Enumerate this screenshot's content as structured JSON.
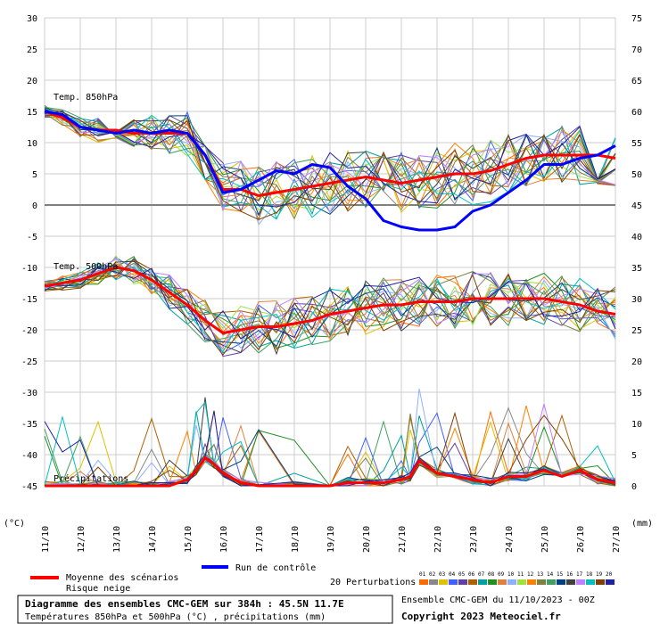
{
  "chart_data": {
    "type": "line",
    "title": "Diagramme des ensembles CMC-GEM sur 384h : 45.5N 11.7E",
    "subtitle": "Températures 850hPa et 500hPa (°C) , précipitations (mm)",
    "source": "Ensemble CMC-GEM du 11/10/2023 - 00Z",
    "copyright": "Copyright 2023 Meteociel.fr",
    "left_unit": "(°C)",
    "right_unit": "(mm)",
    "ylim": [
      -45,
      30
    ],
    "y2lim": [
      0,
      75
    ],
    "yticks": [
      "30",
      "25",
      "20",
      "15",
      "10",
      "5",
      "0",
      "-5",
      "-10",
      "-15",
      "-20",
      "-25",
      "-30",
      "-35",
      "-40",
      "-45"
    ],
    "y2ticks": [
      "75",
      "70",
      "65",
      "60",
      "55",
      "50",
      "45",
      "40",
      "35",
      "30",
      "25",
      "20",
      "15",
      "10",
      "5",
      "0"
    ],
    "x_categories": [
      "11/10",
      "12/10",
      "13/10",
      "14/10",
      "15/10",
      "16/10",
      "17/10",
      "18/10",
      "19/10",
      "20/10",
      "21/10",
      "22/10",
      "23/10",
      "24/10",
      "25/10",
      "26/10",
      "27/10"
    ],
    "panel_labels": {
      "t850": "Temp. 850hPa",
      "t500": "Temp. 500hPa",
      "precip": "Précipitations"
    },
    "series": [
      {
        "name": "Moyenne des scénarios",
        "key": "mean_t850",
        "color": "#ff0000",
        "x": [
          0,
          0.5,
          1,
          1.5,
          2,
          2.5,
          3,
          3.5,
          4,
          4.5,
          5,
          5.5,
          6,
          6.5,
          7,
          7.5,
          8,
          8.5,
          9,
          9.5,
          10,
          10.5,
          11,
          11.5,
          12,
          12.5,
          13,
          13.5,
          14,
          14.5,
          15,
          15.5,
          16
        ],
        "values": [
          15,
          14,
          12.5,
          12,
          12,
          11.5,
          11.5,
          11.5,
          11.5,
          8,
          2.5,
          2.5,
          1.5,
          2,
          2.5,
          3,
          3.5,
          4,
          4.5,
          4,
          3.5,
          4,
          4.5,
          5,
          5,
          5.5,
          6.5,
          7.5,
          8,
          8,
          8,
          8,
          7.5
        ]
      },
      {
        "name": "Run de contrôle",
        "key": "control_t850",
        "color": "#0000ff",
        "x": [
          0,
          0.5,
          1,
          1.5,
          2,
          2.5,
          3,
          3.5,
          4,
          4.5,
          5,
          5.5,
          6,
          6.5,
          7,
          7.5,
          8,
          8.5,
          9,
          9.5,
          10,
          10.5,
          11,
          11.5,
          12,
          12.5,
          13,
          13.5,
          14,
          14.5,
          15,
          15.5,
          16
        ],
        "values": [
          15,
          14.5,
          12.5,
          12,
          11.5,
          12,
          11.5,
          12,
          11.5,
          8,
          2,
          2.5,
          4,
          5.5,
          5,
          6.5,
          6,
          3,
          1,
          -2.5,
          -3.5,
          -4,
          -4,
          -3.5,
          -1,
          0,
          2,
          4,
          6.5,
          6.5,
          7.5,
          8,
          9.5
        ]
      },
      {
        "name": "Moyenne des scénarios",
        "key": "mean_t500",
        "color": "#ff0000",
        "x": [
          0,
          0.5,
          1,
          1.5,
          2,
          2.5,
          3,
          3.5,
          4,
          4.5,
          5,
          5.5,
          6,
          6.5,
          7,
          7.5,
          8,
          8.5,
          9,
          9.5,
          10,
          10.5,
          11,
          11.5,
          12,
          12.5,
          13,
          13.5,
          14,
          14.5,
          15,
          15.5,
          16
        ],
        "values": [
          -13,
          -12.5,
          -12,
          -11,
          -10,
          -10.5,
          -12,
          -14,
          -16,
          -18.5,
          -20.5,
          -20,
          -19.5,
          -19.5,
          -19,
          -18.5,
          -17.5,
          -17,
          -16.5,
          -16,
          -16,
          -15.5,
          -15.5,
          -15.5,
          -15,
          -15,
          -15,
          -15,
          -15,
          -15.5,
          -16,
          -17,
          -17.5
        ]
      },
      {
        "name": "Run de contrôle",
        "key": "control_t500",
        "color": "#0000ff",
        "x": [],
        "values": []
      },
      {
        "name": "Moyenne des scénarios",
        "key": "mean_precip",
        "color": "#ff0000",
        "x": [
          0,
          0.5,
          1,
          1.5,
          2,
          2.5,
          3,
          3.5,
          4,
          4.25,
          4.5,
          4.75,
          5,
          5.5,
          6,
          7,
          8,
          8.5,
          9,
          9.5,
          10,
          10.25,
          10.5,
          11,
          11.5,
          12,
          12.5,
          13,
          13.5,
          14,
          14.5,
          15,
          15.5,
          16
        ],
        "values": [
          0,
          0,
          0,
          0,
          0,
          0,
          0,
          0,
          1,
          2.5,
          4.5,
          3.5,
          2,
          0.5,
          0,
          0,
          0,
          0.5,
          0.5,
          0.5,
          1,
          1.5,
          4,
          2,
          1.5,
          1,
          0.5,
          1.5,
          1.5,
          2.5,
          1.5,
          2.5,
          1,
          0.5
        ]
      }
    ],
    "perturbations": {
      "label": "20 Perturbations",
      "numbers": [
        "01",
        "02",
        "03",
        "04",
        "05",
        "06",
        "07",
        "08",
        "09",
        "10",
        "11",
        "12",
        "13",
        "14",
        "15",
        "16",
        "17",
        "18",
        "19",
        "20"
      ],
      "colors": [
        "#ff6a00",
        "#888888",
        "#e0c000",
        "#4060ff",
        "#6040a0",
        "#b06000",
        "#00a0a0",
        "#209020",
        "#e08040",
        "#90b0ff",
        "#a0e040",
        "#ff8000",
        "#808040",
        "#40a060",
        "#004080",
        "#404040",
        "#c080ff",
        "#00c0c0",
        "#804000",
        "#2020a0"
      ]
    },
    "legend": {
      "mean": "Moyenne des scénarios",
      "snow": "Risque neige",
      "control": "Run de contrôle"
    },
    "snow_color": "#ffffff"
  }
}
